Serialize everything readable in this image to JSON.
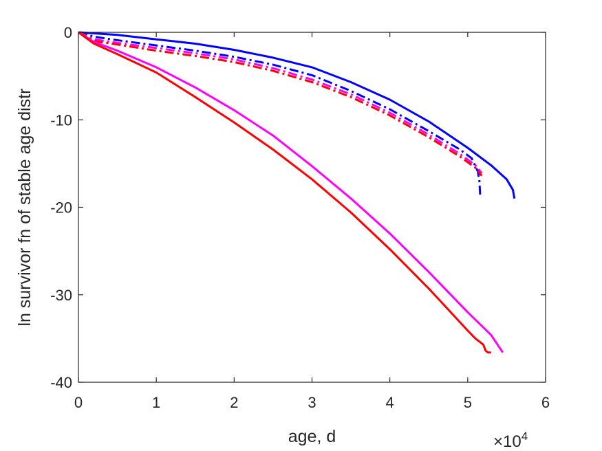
{
  "chart_data": {
    "type": "line",
    "xlabel": "age, d",
    "ylabel": "ln survivor fn of stable age distr",
    "x_exponent_label": {
      "base": "×10",
      "exp": "4"
    },
    "xlim": [
      0,
      60000
    ],
    "ylim": [
      -40,
      0
    ],
    "xticks": [
      0,
      10000,
      20000,
      30000,
      40000,
      50000,
      60000
    ],
    "xtick_labels": [
      "0",
      "1",
      "2",
      "3",
      "4",
      "5",
      "6"
    ],
    "yticks": [
      0,
      -10,
      -20,
      -30,
      -40
    ],
    "ytick_labels": [
      "0",
      "-10",
      "-20",
      "-30",
      "-40"
    ],
    "grid": false,
    "legend": "none",
    "series": [
      {
        "color": "#0000ff",
        "style": "solid",
        "x": [
          0,
          5000,
          10000,
          15000,
          20000,
          25000,
          30000,
          35000,
          40000,
          45000,
          50000,
          53000,
          55000,
          55800,
          56000
        ],
        "y": [
          0,
          -0.3,
          -0.8,
          -1.3,
          -2.0,
          -2.9,
          -4.0,
          -5.7,
          -7.7,
          -10.2,
          -13.2,
          -15.2,
          -16.8,
          -18.0,
          -19.0
        ]
      },
      {
        "color": "#0000ff",
        "style": "dashdot",
        "x": [
          0,
          2000,
          5000,
          10000,
          15000,
          20000,
          25000,
          30000,
          35000,
          40000,
          45000,
          49000,
          50500,
          51300,
          51500,
          51600
        ],
        "y": [
          0,
          -0.5,
          -0.9,
          -1.5,
          -2.1,
          -2.8,
          -3.7,
          -4.9,
          -6.7,
          -8.8,
          -11.3,
          -13.4,
          -14.4,
          -15.9,
          -17.0,
          -18.6
        ]
      },
      {
        "color": "#ff00ff",
        "style": "dashdot",
        "x": [
          0,
          2000,
          5000,
          10000,
          15000,
          20000,
          25000,
          30000,
          35000,
          40000,
          45000,
          49000,
          51000,
          51800
        ],
        "y": [
          0,
          -0.8,
          -1.2,
          -1.8,
          -2.4,
          -3.1,
          -4.1,
          -5.4,
          -7.1,
          -9.2,
          -11.7,
          -13.9,
          -15.2,
          -16.1
        ]
      },
      {
        "color": "#ff0000",
        "style": "dashdot",
        "x": [
          0,
          2000,
          5000,
          10000,
          15000,
          20000,
          25000,
          30000,
          35000,
          40000,
          45000,
          49000,
          51000,
          51800
        ],
        "y": [
          0,
          -1.0,
          -1.4,
          -2.1,
          -2.7,
          -3.4,
          -4.4,
          -5.7,
          -7.4,
          -9.5,
          -12.0,
          -14.2,
          -15.5,
          -16.4
        ]
      },
      {
        "color": "#ff00ff",
        "style": "solid",
        "x": [
          0,
          2000,
          5000,
          10000,
          15000,
          20000,
          25000,
          30000,
          35000,
          40000,
          45000,
          50000,
          53000,
          54500
        ],
        "y": [
          0,
          -1.1,
          -2.1,
          -4.0,
          -6.3,
          -8.9,
          -11.8,
          -15.3,
          -19.0,
          -23.0,
          -27.4,
          -32.0,
          -34.6,
          -36.6
        ]
      },
      {
        "color": "#ff0000",
        "style": "solid",
        "x": [
          0,
          2000,
          5000,
          10000,
          15000,
          20000,
          25000,
          30000,
          35000,
          40000,
          45000,
          50000,
          51000,
          52000,
          52300,
          52600,
          53000
        ],
        "y": [
          0,
          -1.3,
          -2.5,
          -4.6,
          -7.4,
          -10.3,
          -13.4,
          -16.8,
          -20.6,
          -24.8,
          -29.3,
          -34.1,
          -35.0,
          -35.7,
          -36.4,
          -36.6,
          -36.6
        ]
      }
    ]
  }
}
